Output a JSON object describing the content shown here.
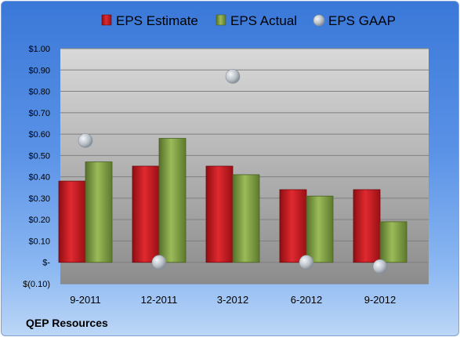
{
  "chart_data": {
    "type": "bar",
    "categories": [
      "9-2011",
      "12-2011",
      "3-2012",
      "6-2012",
      "9-2012"
    ],
    "series": [
      {
        "name": "EPS Estimate",
        "kind": "bar",
        "color": "#c8161d",
        "values": [
          0.38,
          0.45,
          0.45,
          0.34,
          0.34
        ]
      },
      {
        "name": "EPS Actual",
        "kind": "bar",
        "color": "#76923c",
        "values": [
          0.47,
          0.58,
          0.41,
          0.31,
          0.19
        ]
      },
      {
        "name": "EPS GAAP",
        "kind": "marker",
        "color": "#b7bec6",
        "values": [
          0.57,
          0.0,
          0.87,
          0.0,
          -0.02
        ]
      }
    ],
    "ylim": [
      -0.1,
      1.0
    ],
    "yticks": [
      1.0,
      0.9,
      0.8,
      0.7,
      0.6,
      0.5,
      0.4,
      0.3,
      0.2,
      0.1,
      0.0,
      -0.1
    ],
    "ytick_labels": [
      "$1.00",
      "$0.90",
      "$0.80",
      "$0.70",
      "$0.60",
      "$0.50",
      "$0.40",
      "$0.30",
      "$0.20",
      "$0.10",
      "$-",
      "$(0.10)"
    ],
    "legend_position": "top",
    "footer": "QEP Resources",
    "grid": true
  }
}
